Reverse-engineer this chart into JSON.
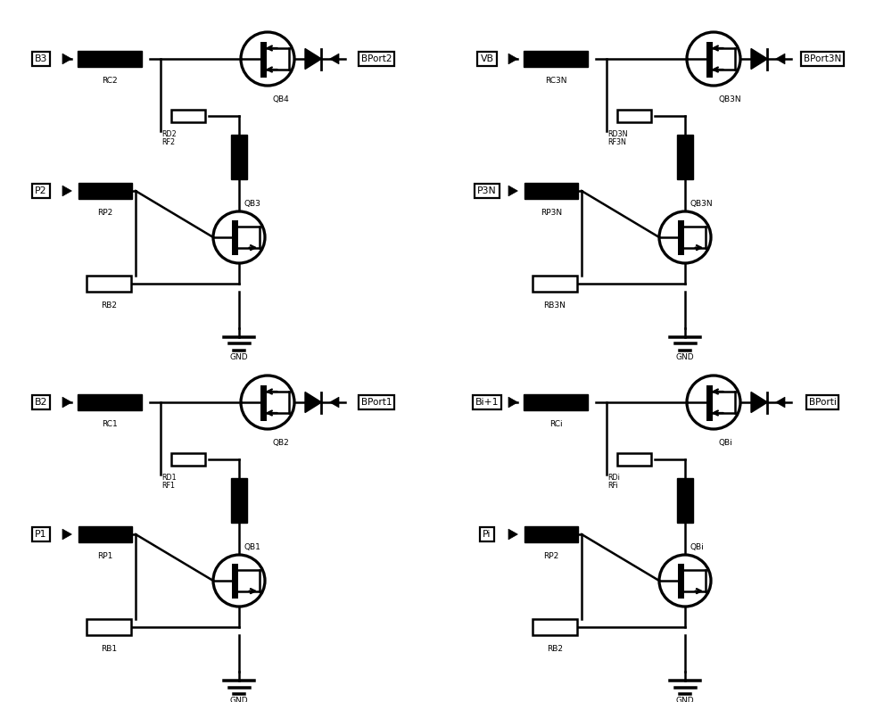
{
  "bg_color": "#ffffff",
  "lc": "#000000",
  "lw": 1.8,
  "blocks": [
    {
      "input_label": "B3",
      "rc_label": "RC2",
      "rd_label": "RD2",
      "rf_label": "RF2",
      "mosfet_label": "QB4",
      "bjt_top_label": "QB3",
      "bjt_label": "QB3",
      "p_label": "P2",
      "rp_label": "RP2",
      "rb_label": "RB2",
      "output_label": "BPort2",
      "gnd_label": "GND",
      "ox": 0.18,
      "oy": 3.93
    },
    {
      "input_label": "VB",
      "rc_label": "RC3N",
      "rd_label": "RD3N",
      "rf_label": "RF3N",
      "mosfet_label": "QB3N",
      "bjt_top_label": "QB3N",
      "bjt_label": "QB3N",
      "p_label": "P3N",
      "rp_label": "RP3N",
      "rb_label": "RB3N",
      "output_label": "BPort3N",
      "gnd_label": "GND",
      "ox": 5.18,
      "oy": 3.93
    },
    {
      "input_label": "B2",
      "rc_label": "RC1",
      "rd_label": "RD1",
      "rf_label": "RF1",
      "mosfet_label": "QB2",
      "bjt_top_label": "QB1",
      "bjt_label": "QB1",
      "p_label": "P1",
      "rp_label": "RP1",
      "rb_label": "RB1",
      "output_label": "BPort1",
      "gnd_label": "GND",
      "ox": 0.18,
      "oy": 0.08
    },
    {
      "input_label": "Bi+1",
      "rc_label": "RCi",
      "rd_label": "RDi",
      "rf_label": "RFi",
      "mosfet_label": "QBi",
      "bjt_top_label": "QBi",
      "bjt_label": "QBi",
      "p_label": "Pi",
      "rp_label": "RP2",
      "rb_label": "RB2",
      "output_label": "BPorti",
      "gnd_label": "GND",
      "ox": 5.18,
      "oy": 0.08
    }
  ]
}
